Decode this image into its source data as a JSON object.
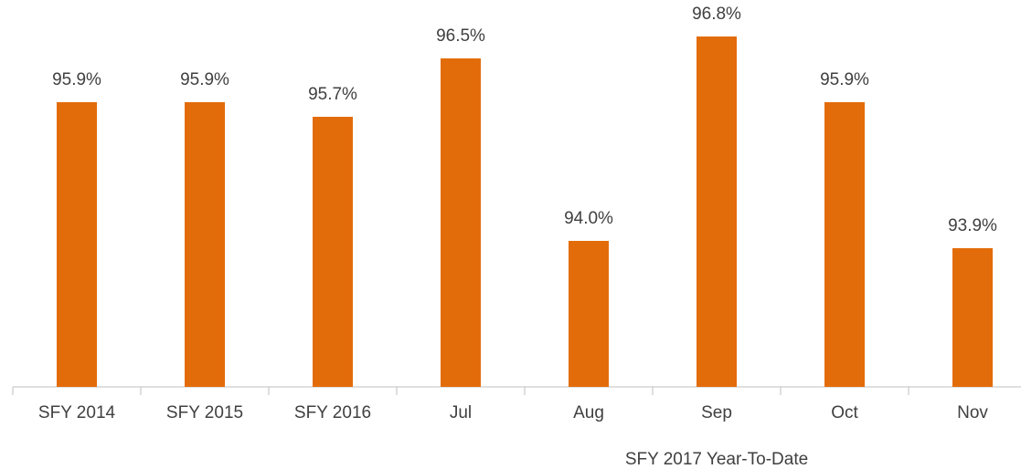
{
  "chart_data": {
    "type": "bar",
    "categories": [
      "SFY 2014",
      "SFY 2015",
      "SFY 2016",
      "Jul",
      "Aug",
      "Sep",
      "Oct",
      "Nov"
    ],
    "values": [
      95.9,
      95.9,
      95.7,
      96.5,
      94.0,
      96.8,
      95.9,
      93.9
    ],
    "value_labels": [
      "95.9%",
      "95.9%",
      "95.7%",
      "96.5%",
      "94.0%",
      "96.8%",
      "95.9%",
      "93.9%"
    ],
    "color": "#e36c0a",
    "ylim": [
      92,
      97
    ],
    "x_group_label": "SFY 2017 Year-To-Date",
    "grid": false
  }
}
